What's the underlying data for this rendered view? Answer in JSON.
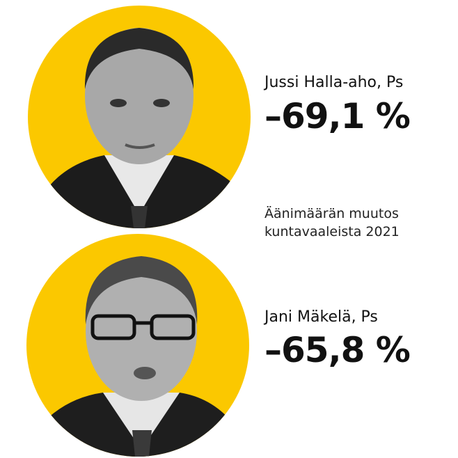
{
  "colors": {
    "accent": "#fbc800",
    "text": "#111111"
  },
  "people": [
    {
      "name": "Jussi Halla-aho, Ps",
      "change": "–69,1 %"
    },
    {
      "name": "Jani Mäkelä, Ps",
      "change": "–65,8 %"
    }
  ],
  "caption": {
    "line1": "Äänimäärän muutos",
    "line2": "kuntavaaleista 2021"
  }
}
